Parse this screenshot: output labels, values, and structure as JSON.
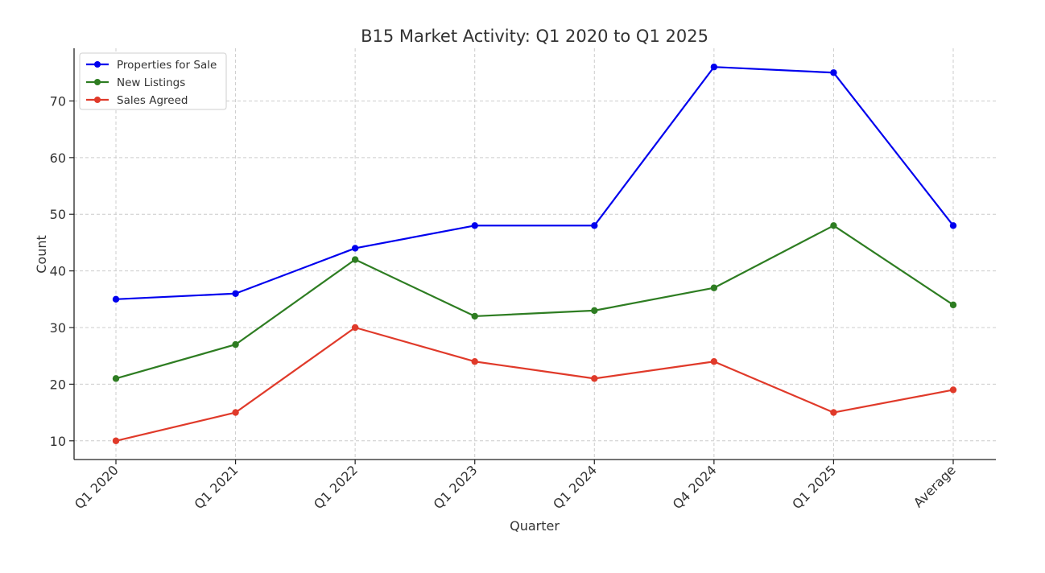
{
  "chart_data": {
    "type": "line",
    "title": "B15 Market Activity: Q1 2020 to Q1 2025",
    "xlabel": "Quarter",
    "ylabel": "Count",
    "categories": [
      "Q1 2020",
      "Q1 2021",
      "Q1 2022",
      "Q1 2023",
      "Q1 2024",
      "Q4 2024",
      "Q1 2025",
      "Average"
    ],
    "ylim": [
      6.7,
      79.3
    ],
    "yticks": [
      10,
      20,
      30,
      40,
      50,
      60,
      70
    ],
    "grid": true,
    "legend_position": "top-left",
    "series": [
      {
        "name": "Properties for Sale",
        "color": "#0000ee",
        "values": [
          35,
          36,
          44,
          48,
          48,
          76,
          75,
          48
        ]
      },
      {
        "name": "New Listings",
        "color": "#2e7d22",
        "values": [
          21,
          27,
          42,
          32,
          33,
          37,
          48,
          34
        ]
      },
      {
        "name": "Sales Agreed",
        "color": "#e03a2a",
        "values": [
          10,
          15,
          30,
          24,
          21,
          24,
          15,
          19
        ]
      }
    ]
  }
}
